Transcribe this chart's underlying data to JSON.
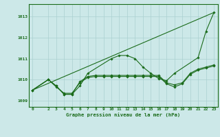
{
  "title": "Graphe pression niveau de la mer (hPa)",
  "xlabel_ticks": [
    0,
    2,
    3,
    4,
    5,
    6,
    7,
    8,
    9,
    10,
    11,
    12,
    13,
    14,
    15,
    16,
    17,
    18,
    19,
    20,
    21,
    22,
    23
  ],
  "xlim": [
    -0.5,
    23.5
  ],
  "ylim": [
    1008.7,
    1013.6
  ],
  "yticks": [
    1009,
    1010,
    1011,
    1012,
    1013
  ],
  "background_color": "#cce8e8",
  "grid_color": "#aad0d0",
  "line_color": "#1a6b1a",
  "lines": [
    {
      "x": [
        0,
        23
      ],
      "y": [
        1009.5,
        1013.2
      ],
      "marker": false
    },
    {
      "x": [
        0,
        2,
        3,
        4,
        5,
        6,
        7,
        10,
        11,
        12,
        13,
        14,
        15,
        16,
        17,
        18,
        21,
        22,
        23
      ],
      "y": [
        1009.5,
        1010.0,
        1009.7,
        1009.3,
        1009.3,
        1009.7,
        1010.3,
        1011.0,
        1011.15,
        1011.15,
        1011.0,
        1010.6,
        1010.3,
        1010.05,
        1009.95,
        1010.3,
        1011.05,
        1012.3,
        1013.2
      ],
      "marker": true
    },
    {
      "x": [
        0,
        2,
        3,
        4,
        5,
        6,
        7,
        8,
        9,
        10,
        11,
        12,
        13,
        14,
        15,
        16,
        17,
        18,
        19,
        20,
        21,
        22,
        23
      ],
      "y": [
        1009.5,
        1010.0,
        1009.7,
        1009.3,
        1009.3,
        1009.9,
        1010.15,
        1010.2,
        1010.2,
        1010.2,
        1010.2,
        1010.2,
        1010.2,
        1010.2,
        1010.2,
        1010.2,
        1009.85,
        1009.75,
        1009.85,
        1010.3,
        1010.5,
        1010.6,
        1010.7
      ],
      "marker": true
    },
    {
      "x": [
        0,
        2,
        3,
        4,
        5,
        6,
        7,
        8,
        9,
        10,
        11,
        12,
        13,
        14,
        15,
        16,
        17,
        18,
        19,
        20,
        21,
        22,
        23
      ],
      "y": [
        1009.5,
        1010.0,
        1009.65,
        1009.35,
        1009.35,
        1009.85,
        1010.1,
        1010.15,
        1010.15,
        1010.15,
        1010.15,
        1010.15,
        1010.15,
        1010.15,
        1010.15,
        1010.15,
        1009.8,
        1009.65,
        1009.8,
        1010.25,
        1010.45,
        1010.55,
        1010.65
      ],
      "marker": true
    }
  ]
}
